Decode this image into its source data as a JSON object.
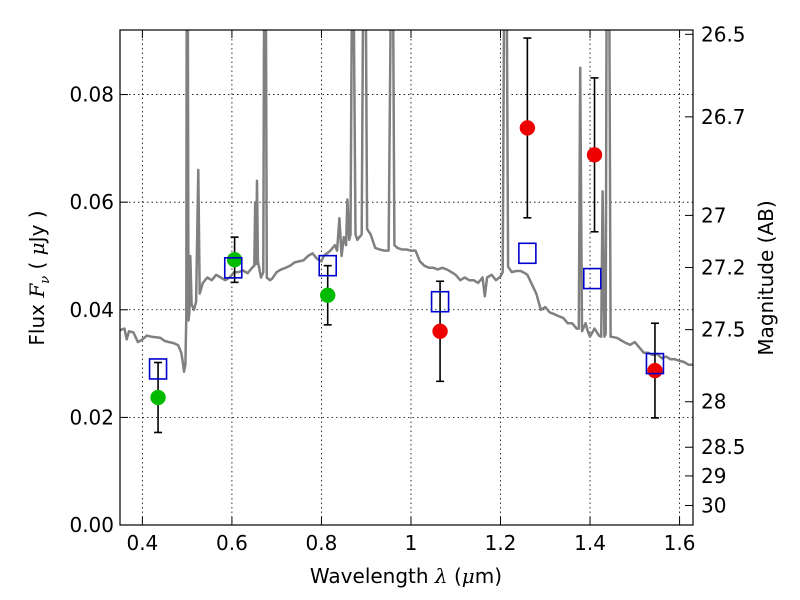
{
  "chart_data": {
    "type": "scatter",
    "xlabel": "Wavelength  λ (μm)",
    "ylabel": "Flux  Fν  ( μJy )",
    "ylabel_right": "Magnitude (AB)",
    "xlim": [
      0.35,
      1.63
    ],
    "ylim": [
      0.0,
      0.092
    ],
    "grid": true,
    "x_ticks": [
      0.4,
      0.6,
      0.8,
      1.0,
      1.2,
      1.4,
      1.6
    ],
    "x_tick_labels": [
      "0.4",
      "0.6",
      "0.8",
      "1",
      "1.2",
      "1.4",
      "1.6"
    ],
    "y_ticks": [
      0.0,
      0.02,
      0.04,
      0.06,
      0.08
    ],
    "y_tick_labels": [
      "0.00",
      "0.02",
      "0.04",
      "0.06",
      "0.08"
    ],
    "mag_ticks": [
      26.5,
      26.7,
      27,
      27.2,
      27.5,
      28,
      28.5,
      29,
      30
    ],
    "mag_tick_labels": [
      "26.5",
      "26.7",
      "27",
      "27.2",
      "27.5",
      "28",
      "28.5",
      "29",
      "30"
    ],
    "colors": {
      "model": "#808080",
      "green": "#00bb00",
      "red": "#ee0000",
      "model_box": "#0000cc",
      "errorbar": "#000000"
    },
    "series": [
      {
        "marker": "circle",
        "color": "#00bb00",
        "points": [
          {
            "x": 0.435,
            "y": 0.0237,
            "err": 0.0065
          },
          {
            "x": 0.606,
            "y": 0.0493,
            "err": 0.0042
          },
          {
            "x": 0.814,
            "y": 0.0427,
            "err": 0.0055
          }
        ]
      },
      {
        "marker": "circle",
        "color": "#ee0000",
        "points": [
          {
            "x": 1.065,
            "y": 0.036,
            "err": 0.0093
          },
          {
            "x": 1.26,
            "y": 0.0738,
            "err": 0.0167
          },
          {
            "x": 1.41,
            "y": 0.0688,
            "err": 0.0143
          },
          {
            "x": 1.545,
            "y": 0.0287,
            "err": 0.0088
          }
        ]
      },
      {
        "marker": "open-square",
        "color": "#0000cc",
        "points": [
          {
            "x": 0.435,
            "y": 0.029
          },
          {
            "x": 0.603,
            "y": 0.0478
          },
          {
            "x": 0.814,
            "y": 0.0482
          },
          {
            "x": 1.065,
            "y": 0.0415
          },
          {
            "x": 1.26,
            "y": 0.0505
          },
          {
            "x": 1.405,
            "y": 0.0458
          },
          {
            "x": 1.545,
            "y": 0.03
          }
        ]
      }
    ],
    "model_spectrum": [
      [
        0.35,
        0.0362
      ],
      [
        0.36,
        0.0365
      ],
      [
        0.365,
        0.0345
      ],
      [
        0.37,
        0.036
      ],
      [
        0.38,
        0.0358
      ],
      [
        0.39,
        0.034
      ],
      [
        0.4,
        0.0345
      ],
      [
        0.41,
        0.0352
      ],
      [
        0.42,
        0.035
      ],
      [
        0.43,
        0.0349
      ],
      [
        0.44,
        0.0348
      ],
      [
        0.45,
        0.0342
      ],
      [
        0.46,
        0.034
      ],
      [
        0.47,
        0.0338
      ],
      [
        0.48,
        0.0334
      ],
      [
        0.487,
        0.032
      ],
      [
        0.49,
        0.0304
      ],
      [
        0.493,
        0.0285
      ],
      [
        0.496,
        0.0298
      ],
      [
        0.498,
        0.0388
      ],
      [
        0.499,
        0.098
      ],
      [
        0.5015,
        0.098
      ],
      [
        0.503,
        0.038
      ],
      [
        0.505,
        0.0396
      ],
      [
        0.507,
        0.05
      ],
      [
        0.51,
        0.041
      ],
      [
        0.515,
        0.04
      ],
      [
        0.52,
        0.0415
      ],
      [
        0.525,
        0.066
      ],
      [
        0.528,
        0.043
      ],
      [
        0.535,
        0.045
      ],
      [
        0.545,
        0.046
      ],
      [
        0.555,
        0.0455
      ],
      [
        0.565,
        0.0465
      ],
      [
        0.575,
        0.046
      ],
      [
        0.585,
        0.0455
      ],
      [
        0.595,
        0.046
      ],
      [
        0.605,
        0.047
      ],
      [
        0.615,
        0.047
      ],
      [
        0.625,
        0.0473
      ],
      [
        0.635,
        0.0468
      ],
      [
        0.645,
        0.0478
      ],
      [
        0.65,
        0.0482
      ],
      [
        0.652,
        0.06
      ],
      [
        0.654,
        0.0485
      ],
      [
        0.656,
        0.064
      ],
      [
        0.658,
        0.049
      ],
      [
        0.665,
        0.046
      ],
      [
        0.67,
        0.047
      ],
      [
        0.672,
        0.098
      ],
      [
        0.676,
        0.098
      ],
      [
        0.678,
        0.046
      ],
      [
        0.685,
        0.0455
      ],
      [
        0.69,
        0.0458
      ],
      [
        0.7,
        0.047
      ],
      [
        0.71,
        0.0475
      ],
      [
        0.72,
        0.0478
      ],
      [
        0.73,
        0.0482
      ],
      [
        0.74,
        0.0488
      ],
      [
        0.75,
        0.049
      ],
      [
        0.76,
        0.0492
      ],
      [
        0.77,
        0.05
      ],
      [
        0.78,
        0.0505
      ],
      [
        0.79,
        0.0495
      ],
      [
        0.8,
        0.049
      ],
      [
        0.805,
        0.05
      ],
      [
        0.82,
        0.051
      ],
      [
        0.83,
        0.052
      ],
      [
        0.835,
        0.051
      ],
      [
        0.84,
        0.057
      ],
      [
        0.845,
        0.05
      ],
      [
        0.85,
        0.0535
      ],
      [
        0.855,
        0.052
      ],
      [
        0.858,
        0.0605
      ],
      [
        0.862,
        0.053
      ],
      [
        0.865,
        0.054
      ],
      [
        0.868,
        0.098
      ],
      [
        0.872,
        0.098
      ],
      [
        0.876,
        0.054
      ],
      [
        0.88,
        0.053
      ],
      [
        0.885,
        0.0535
      ],
      [
        0.89,
        0.054
      ],
      [
        0.893,
        0.098
      ],
      [
        0.899,
        0.098
      ],
      [
        0.902,
        0.055
      ],
      [
        0.91,
        0.054
      ],
      [
        0.92,
        0.0515
      ],
      [
        0.93,
        0.0512
      ],
      [
        0.94,
        0.051
      ],
      [
        0.95,
        0.051
      ],
      [
        0.955,
        0.098
      ],
      [
        0.96,
        0.098
      ],
      [
        0.963,
        0.052
      ],
      [
        0.97,
        0.0515
      ],
      [
        0.98,
        0.0512
      ],
      [
        0.99,
        0.0512
      ],
      [
        1.0,
        0.051
      ],
      [
        1.01,
        0.051
      ],
      [
        1.02,
        0.049
      ],
      [
        1.03,
        0.0482
      ],
      [
        1.04,
        0.0478
      ],
      [
        1.05,
        0.0478
      ],
      [
        1.06,
        0.0475
      ],
      [
        1.07,
        0.0478
      ],
      [
        1.08,
        0.0475
      ],
      [
        1.09,
        0.047
      ],
      [
        1.1,
        0.0465
      ],
      [
        1.11,
        0.0455
      ],
      [
        1.12,
        0.046
      ],
      [
        1.13,
        0.0455
      ],
      [
        1.14,
        0.0455
      ],
      [
        1.15,
        0.045
      ],
      [
        1.16,
        0.046
      ],
      [
        1.165,
        0.0425
      ],
      [
        1.17,
        0.046
      ],
      [
        1.18,
        0.0465
      ],
      [
        1.19,
        0.0455
      ],
      [
        1.2,
        0.0462
      ],
      [
        1.205,
        0.047
      ],
      [
        1.208,
        0.098
      ],
      [
        1.214,
        0.098
      ],
      [
        1.217,
        0.048
      ],
      [
        1.225,
        0.047
      ],
      [
        1.235,
        0.0472
      ],
      [
        1.245,
        0.0472
      ],
      [
        1.255,
        0.0468
      ],
      [
        1.26,
        0.0465
      ],
      [
        1.28,
        0.043
      ],
      [
        1.29,
        0.04
      ],
      [
        1.3,
        0.0405
      ],
      [
        1.31,
        0.0395
      ],
      [
        1.32,
        0.0392
      ],
      [
        1.33,
        0.0388
      ],
      [
        1.34,
        0.0385
      ],
      [
        1.35,
        0.0375
      ],
      [
        1.36,
        0.0375
      ],
      [
        1.37,
        0.0365
      ],
      [
        1.375,
        0.0365
      ],
      [
        1.378,
        0.085
      ],
      [
        1.382,
        0.036
      ],
      [
        1.39,
        0.0375
      ],
      [
        1.395,
        0.036
      ],
      [
        1.4,
        0.035
      ],
      [
        1.41,
        0.0365
      ],
      [
        1.42,
        0.0352
      ],
      [
        1.425,
        0.035
      ],
      [
        1.428,
        0.062
      ],
      [
        1.432,
        0.035
      ],
      [
        1.435,
        0.0355
      ],
      [
        1.437,
        0.098
      ],
      [
        1.443,
        0.098
      ],
      [
        1.446,
        0.035
      ],
      [
        1.46,
        0.0348
      ],
      [
        1.47,
        0.0343
      ],
      [
        1.48,
        0.0338
      ],
      [
        1.49,
        0.0335
      ],
      [
        1.5,
        0.034
      ],
      [
        1.51,
        0.033
      ],
      [
        1.52,
        0.032
      ],
      [
        1.53,
        0.032
      ],
      [
        1.54,
        0.0316
      ],
      [
        1.55,
        0.0318
      ],
      [
        1.56,
        0.031
      ],
      [
        1.57,
        0.0313
      ],
      [
        1.58,
        0.0308
      ],
      [
        1.59,
        0.0308
      ],
      [
        1.6,
        0.0305
      ],
      [
        1.61,
        0.0303
      ],
      [
        1.62,
        0.0298
      ],
      [
        1.63,
        0.0298
      ]
    ]
  }
}
